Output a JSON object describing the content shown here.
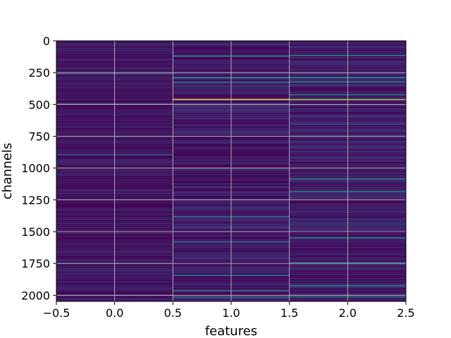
{
  "chart_data": {
    "type": "heatmap",
    "title": "",
    "xlabel": "features",
    "ylabel": "channels",
    "xlim": [
      -0.5,
      2.5
    ],
    "ylim": [
      2048,
      0
    ],
    "y_inverted": true,
    "grid": true,
    "grid_color": "#c8c8c8",
    "colormap": "viridis",
    "background_color": "#440154",
    "n_columns": 3,
    "n_rows": 2048,
    "x_ticks": [
      -0.5,
      0.0,
      0.5,
      1.0,
      1.5,
      2.0,
      2.5
    ],
    "x_tick_labels": [
      "−0.5",
      "0.0",
      "0.5",
      "1.0",
      "1.5",
      "2.0",
      "2.5"
    ],
    "y_ticks": [
      0,
      250,
      500,
      750,
      1000,
      1250,
      1500,
      1750,
      2000
    ],
    "y_tick_labels": [
      "0",
      "250",
      "500",
      "750",
      "1000",
      "1250",
      "1500",
      "1750",
      "2000"
    ],
    "highlight_rows": [
      {
        "column": 1,
        "channel": 115,
        "value": 0.45
      },
      {
        "column": 1,
        "channel": 285,
        "value": 0.5
      },
      {
        "column": 1,
        "channel": 320,
        "value": 0.42
      },
      {
        "column": 1,
        "channel": 458,
        "value": 0.95
      },
      {
        "column": 1,
        "channel": 1380,
        "value": 0.4
      },
      {
        "column": 1,
        "channel": 1575,
        "value": 0.4
      },
      {
        "column": 1,
        "channel": 1840,
        "value": 0.45
      },
      {
        "column": 1,
        "channel": 1960,
        "value": 0.4
      },
      {
        "column": 1,
        "channel": 2010,
        "value": 0.42
      },
      {
        "column": 2,
        "channel": 110,
        "value": 0.5
      },
      {
        "column": 2,
        "channel": 285,
        "value": 0.5
      },
      {
        "column": 2,
        "channel": 320,
        "value": 0.48
      },
      {
        "column": 2,
        "channel": 420,
        "value": 0.42
      },
      {
        "column": 2,
        "channel": 458,
        "value": 0.85
      },
      {
        "column": 2,
        "channel": 1080,
        "value": 0.45
      },
      {
        "column": 2,
        "channel": 1180,
        "value": 0.42
      },
      {
        "column": 2,
        "channel": 1545,
        "value": 0.5
      },
      {
        "column": 2,
        "channel": 1740,
        "value": 0.4
      },
      {
        "column": 2,
        "channel": 1920,
        "value": 0.45
      },
      {
        "column": 2,
        "channel": 2010,
        "value": 0.42
      },
      {
        "column": 0,
        "channel": 255,
        "value": 0.3
      },
      {
        "column": 0,
        "channel": 490,
        "value": 0.28
      },
      {
        "column": 0,
        "channel": 890,
        "value": 0.3
      },
      {
        "column": 0,
        "channel": 1745,
        "value": 0.32
      }
    ]
  }
}
